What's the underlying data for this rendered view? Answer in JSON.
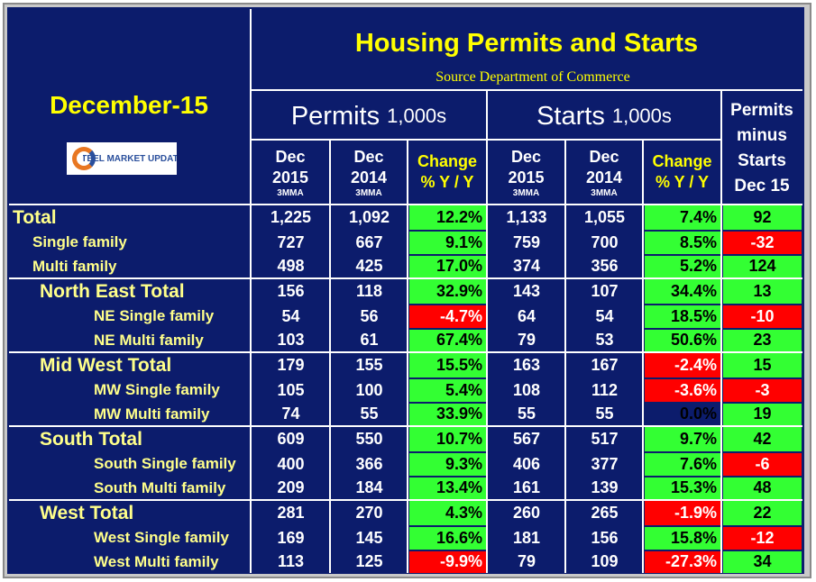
{
  "header": {
    "date": "December-15",
    "logo": "STEEL MARKET UPDATE",
    "title": "Housing Permits and Starts",
    "source": "Source Department of Commerce",
    "groups": [
      {
        "name": "Permits",
        "unit": "1,000s"
      },
      {
        "name": "Starts",
        "unit": "1,000s"
      }
    ],
    "columns": [
      {
        "lines": [
          "Dec",
          "2015"
        ],
        "note": "3MMA"
      },
      {
        "lines": [
          "Dec",
          "2014"
        ],
        "note": "3MMA"
      },
      {
        "lines": [
          "Change",
          "% Y / Y"
        ]
      },
      {
        "lines": [
          "Dec",
          "2015"
        ],
        "note": "3MMA"
      },
      {
        "lines": [
          "Dec",
          "2014"
        ],
        "note": "3MMA"
      },
      {
        "lines": [
          "Change",
          "% Y / Y"
        ]
      },
      {
        "lines": [
          "Permits",
          "minus",
          "Starts",
          "Dec 15"
        ]
      }
    ]
  },
  "table": {
    "groups": [
      {
        "total": {
          "label": "Total",
          "cells": [
            "1,225",
            "1,092",
            "12.2%",
            "1,133",
            "1,055",
            "7.4%",
            "92"
          ]
        },
        "subs": [
          {
            "label": "Single family",
            "cells": [
              "727",
              "667",
              "9.1%",
              "759",
              "700",
              "8.5%",
              "-32"
            ]
          },
          {
            "label": "Multi family",
            "cells": [
              "498",
              "425",
              "17.0%",
              "374",
              "356",
              "5.2%",
              "124"
            ]
          }
        ]
      },
      {
        "total": {
          "label": "North East Total",
          "cells": [
            "156",
            "118",
            "32.9%",
            "143",
            "107",
            "34.4%",
            "13"
          ]
        },
        "subs": [
          {
            "label": "NE Single family",
            "cells": [
              "54",
              "56",
              "-4.7%",
              "64",
              "54",
              "18.5%",
              "-10"
            ]
          },
          {
            "label": "NE Multi family",
            "cells": [
              "103",
              "61",
              "67.4%",
              "79",
              "53",
              "50.6%",
              "23"
            ]
          }
        ]
      },
      {
        "total": {
          "label": "Mid West Total",
          "cells": [
            "179",
            "155",
            "15.5%",
            "163",
            "167",
            "-2.4%",
            "15"
          ]
        },
        "subs": [
          {
            "label": "MW Single family",
            "cells": [
              "105",
              "100",
              "5.4%",
              "108",
              "112",
              "-3.6%",
              "-3"
            ]
          },
          {
            "label": "MW Multi family",
            "cells": [
              "74",
              "55",
              "33.9%",
              "55",
              "55",
              "0.0%",
              "19"
            ]
          }
        ]
      },
      {
        "total": {
          "label": "South Total",
          "cells": [
            "609",
            "550",
            "10.7%",
            "567",
            "517",
            "9.7%",
            "42"
          ]
        },
        "subs": [
          {
            "label": "South Single family",
            "cells": [
              "400",
              "366",
              "9.3%",
              "406",
              "377",
              "7.6%",
              "-6"
            ]
          },
          {
            "label": "South Multi family",
            "cells": [
              "209",
              "184",
              "13.4%",
              "161",
              "139",
              "15.3%",
              "48"
            ]
          }
        ]
      },
      {
        "total": {
          "label": "West Total",
          "cells": [
            "281",
            "270",
            "4.3%",
            "260",
            "265",
            "-1.9%",
            "22"
          ]
        },
        "subs": [
          {
            "label": "West Single family",
            "cells": [
              "169",
              "145",
              "16.6%",
              "181",
              "156",
              "15.8%",
              "-12"
            ]
          },
          {
            "label": "West Multi family",
            "cells": [
              "113",
              "125",
              "-9.9%",
              "79",
              "109",
              "-27.3%",
              "34"
            ]
          }
        ]
      }
    ]
  }
}
